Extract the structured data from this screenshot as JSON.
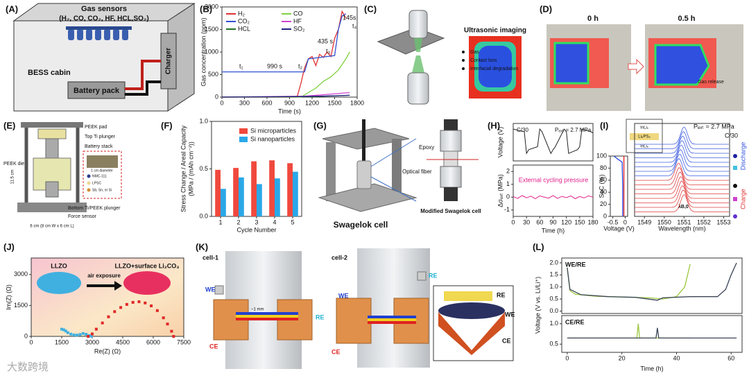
{
  "figure": {
    "A": {
      "label": "(A)",
      "sensors": "Gas sensors",
      "gases": "(H₂, CO, CO₂, HF, HCL,SO₂)",
      "cabin": "BESS cabin",
      "battery": "Battery pack",
      "charger": "Charger"
    },
    "B": {
      "label": "(B)",
      "annotations": [
        "t₁",
        "990 s",
        "t₂",
        "435 s",
        "t₃",
        "145s",
        "t₄"
      ],
      "chart": {
        "type": "line",
        "xlabel": "Time (s)",
        "ylabel": "Gas concentration (ppm)",
        "xlim": [
          0,
          1800
        ],
        "ylim": [
          0,
          2000
        ],
        "xticks": [
          0,
          300,
          600,
          900,
          1200,
          1500,
          1800
        ],
        "yticks": [
          0,
          500,
          1000,
          1500,
          2000
        ],
        "series": [
          {
            "name": "H₂",
            "color": "#e03030",
            "x": [
              0,
              1000,
              1050,
              1100,
              1150,
              1200,
              1250,
              1300,
              1350,
              1400,
              1450,
              1500,
              1550,
              1600,
              1650
            ],
            "values": [
              0,
              0,
              300,
              650,
              850,
              900,
              700,
              950,
              880,
              1000,
              900,
              1300,
              1500,
              1900,
              1750
            ]
          },
          {
            "name": "CO",
            "color": "#7ed040",
            "x": [
              0,
              1050,
              1150,
              1250,
              1350,
              1450,
              1550,
              1650,
              1700
            ],
            "values": [
              0,
              0,
              100,
              200,
              350,
              450,
              600,
              850,
              1000
            ]
          },
          {
            "name": "CO₂",
            "color": "#3050d0",
            "x": [
              0,
              1100,
              1150,
              1500,
              1550,
              1600,
              1650
            ],
            "values": [
              560,
              560,
              850,
              920,
              1500,
              1800,
              1850
            ]
          },
          {
            "name": "HF",
            "color": "#d040d0",
            "x": [
              0,
              1100,
              1400,
              1700
            ],
            "values": [
              0,
              20,
              60,
              100
            ]
          },
          {
            "name": "HCL",
            "color": "#207020",
            "x": [
              0,
              1200,
              1700
            ],
            "values": [
              0,
              10,
              40
            ]
          },
          {
            "name": "SO₂",
            "color": "#202080",
            "x": [
              0,
              1000,
              1500,
              1700
            ],
            "values": [
              0,
              10,
              30,
              40
            ]
          }
        ]
      }
    },
    "C": {
      "label": "(C)",
      "title": "Ultrasonic imaging",
      "items": [
        "Gas",
        "Contact loss",
        "Interfacial degradation"
      ]
    },
    "D": {
      "label": "(D)",
      "times": [
        "0 h",
        "0.5 h"
      ],
      "note": "Gas release"
    },
    "E": {
      "label": "(E)",
      "parts": [
        "PEEK pad",
        "Top Ti plunger",
        "Battery stack",
        "PEEK die",
        "Bottom Ti/PEEK plunger",
        "Force sensor"
      ],
      "legend": [
        "NMC-111",
        "LPSC",
        "Sb, Sn, or Si"
      ],
      "diameter": "1 cm diameter",
      "height": "11.5 cm",
      "width": "6 cm (8 cm W x 6 cm L)"
    },
    "F": {
      "label": "(F)",
      "chart": {
        "type": "bar",
        "xlabel": "Cycle Number",
        "ylabel": [
          "Stress Change / Areal Capacity",
          "(MPa / (mAh cm⁻²))"
        ],
        "categories": [
          "1",
          "2",
          "3",
          "4",
          "5"
        ],
        "ylim": [
          0,
          1.0
        ],
        "yticks": [
          {
            "value": 0,
            "label": "0.0"
          },
          0.5,
          {
            "value": 1.0,
            "label": "1.0"
          }
        ],
        "series": [
          {
            "name": "Si microparticles",
            "color": "#f0493e",
            "values": [
              0.49,
              0.51,
              0.58,
              0.59,
              0.56
            ]
          },
          {
            "name": "Si nanoparticles",
            "color": "#2aa8e8",
            "values": [
              0.29,
              0.41,
              0.34,
              0.4,
              0.47
            ]
          }
        ]
      }
    },
    "G": {
      "label": "(G)",
      "epoxy": "Epoxy",
      "fiber": "Optical fiber",
      "cell": "Swagelok cell",
      "modified": "Modified Swagelok cell"
    },
    "H": {
      "label": "(H)",
      "rate": "C/30",
      "pressure": "Pₑₓₜ = 2.7 MPa",
      "note": "External cycling pressure",
      "charts": [
        {
          "type": "line",
          "ylabel": "Voltage (V)",
          "xlim": [
            0,
            180
          ],
          "ylim": [
            0,
            1
          ],
          "series": [
            {
              "color": "#222222",
              "x": [
                0,
                25,
                30,
                35,
                55,
                60,
                65,
                85,
                90,
                95,
                115,
                120,
                125,
                145,
                150,
                155,
                175,
                180
              ],
              "values": [
                0.85,
                0.78,
                0.2,
                0.3,
                0.38,
                0.85,
                0.78,
                0.2,
                0.3,
                0.38,
                0.85,
                0.78,
                0.2,
                0.3,
                0.38,
                0.85,
                0.78,
                0.75
              ]
            }
          ]
        },
        {
          "type": "line",
          "ylabel": "Δσₑₓₜ (MPa)",
          "xlabel": "Time (h)",
          "xlim": [
            0,
            180
          ],
          "ylim": [
            -1.5,
            2.5
          ],
          "xticks": [
            0,
            30,
            60,
            90,
            120,
            150,
            180
          ],
          "yticks": [
            -1,
            0,
            1,
            2
          ],
          "series": [
            {
              "color": "#e0208a",
              "x": [
                0,
                10,
                20,
                30,
                40,
                50,
                60,
                70,
                80,
                90,
                100,
                110,
                120,
                130,
                140,
                150,
                160,
                170,
                180
              ],
              "values": [
                0.05,
                -0.1,
                0.12,
                -0.05,
                0.08,
                -0.12,
                0.1,
                0.0,
                -0.08,
                0.12,
                -0.1,
                0.06,
                -0.04,
                0.1,
                -0.12,
                0.05,
                -0.06,
                0.1,
                0.0
              ]
            }
          ]
        }
      ]
    },
    "I": {
      "label": "(I)",
      "pressure": "Pₑₓₜ = 2.7 MPa",
      "rate": "C/30",
      "discharge": "Discharge",
      "charge": "Charge",
      "lambda": "λB,0",
      "stack": [
        "InLiₓ",
        "Li₆PS₅",
        "InLiₓ"
      ],
      "soc": {
        "type": "line",
        "ylabel": "SoC (%)",
        "xlabel": "Voltage (V)",
        "xlim": [
          -0.6,
          0.1
        ],
        "ylim": [
          0,
          100
        ],
        "xticks": [
          -0.5,
          0
        ],
        "yticks": [
          0,
          20,
          40,
          60,
          80,
          100
        ],
        "series": [
          {
            "color": "#2040e0",
            "x": [
              -0.45,
              -0.3,
              -0.12,
              -0.1,
              -0.1
            ],
            "values": [
              100,
              95,
              90,
              50,
              0
            ]
          },
          {
            "color": "#e02020",
            "x": [
              -0.05,
              -0.05,
              -0.05
            ],
            "values": [
              0,
              50,
              100
            ]
          }
        ]
      },
      "spectra": {
        "type": "waterfall",
        "xlabel": "Wavelength (nm)",
        "xlim": [
          1548.5,
          1553.3
        ],
        "xticks": [
          1549,
          1550,
          1551,
          1552,
          1553
        ],
        "peaks": [
          1551.0,
          1550.97,
          1550.93,
          1550.9,
          1550.86,
          1550.82,
          1550.78,
          1550.74,
          1550.72,
          1550.76,
          1550.8,
          1550.84,
          1550.88,
          1550.92,
          1550.96,
          1551.0
        ]
      }
    },
    "J": {
      "label": "(J)",
      "arrow": "air exposure",
      "chart": {
        "type": "scatter",
        "xlabel": "Re(Z) (Ω)",
        "ylabel": "Im(Z) (Ω)",
        "xlim": [
          0,
          7500
        ],
        "ylim": [
          0,
          3800
        ],
        "xticks": [
          0,
          1500,
          3000,
          4500,
          6000,
          7500
        ],
        "yticks": [
          0,
          1500,
          3000
        ],
        "series": [
          {
            "name": "LLZO",
            "color": "#40b0e0",
            "x": [
              1500,
              1600,
              1700,
              1800,
              1950,
              2100,
              2250,
              2400,
              2550,
              2700,
              2850,
              2950
            ],
            "values": [
              350,
              320,
              260,
              180,
              110,
              70,
              60,
              90,
              140,
              100,
              40,
              10
            ]
          },
          {
            "name": "LLZO+surface Li₂CO₃",
            "color": "#e02828",
            "x": [
              2800,
              3000,
              3200,
              3500,
              3800,
              4100,
              4400,
              4700,
              5000,
              5300,
              5600,
              5900,
              6200,
              6500,
              6700,
              6900,
              7000
            ],
            "values": [
              0,
              120,
              350,
              650,
              950,
              1200,
              1400,
              1550,
              1650,
              1680,
              1620,
              1480,
              1250,
              900,
              600,
              250,
              0
            ]
          }
        ]
      }
    },
    "K": {
      "label": "(K)",
      "cells": [
        "cell-1",
        "cell-2"
      ],
      "cell1": {
        "we": "WE",
        "re": "RE",
        "ce": "CE",
        "gap": "~1 mm"
      },
      "cell2": {
        "we": "WE",
        "re": "RE",
        "ce": "CE",
        "inset": [
          "RE",
          "WE",
          "CE"
        ]
      }
    },
    "L": {
      "label": "(L)",
      "ylabel": "Voltage (V vs. Li/Li⁺)",
      "charts": [
        {
          "type": "line",
          "title": "WE/RE",
          "xlim": [
            -2,
            64
          ],
          "ylim": [
            -0.1,
            2.2
          ],
          "yticks": [
            {
              "value": 0,
              "label": "0.0"
            },
            0.5,
            {
              "value": 1.0,
              "label": "1.0"
            },
            1.5,
            {
              "value": 2.0,
              "label": "2.0"
            }
          ],
          "series": [
            {
              "color": "#9bc83c",
              "x": [
                0,
                1,
                3,
                10,
                20,
                30,
                35,
                40,
                43,
                45
              ],
              "values": [
                1.8,
                0.85,
                0.7,
                0.62,
                0.58,
                0.55,
                0.5,
                0.6,
                1.0,
                1.95
              ]
            },
            {
              "color": "#3a4456",
              "x": [
                0,
                1,
                5,
                15,
                25,
                33,
                35,
                45,
                55,
                58,
                60,
                62
              ],
              "values": [
                1.8,
                0.9,
                0.68,
                0.6,
                0.57,
                0.45,
                0.55,
                0.6,
                0.6,
                0.9,
                1.5,
                2.0
              ]
            }
          ]
        },
        {
          "type": "line",
          "title": "CE/RE",
          "xlabel": "Time (h)",
          "xlim": [
            -2,
            64
          ],
          "ylim": [
            0.3,
            1.2
          ],
          "xticks": [
            0,
            20,
            40,
            60
          ],
          "yticks": [
            0.5,
            {
              "value": 1.0,
              "label": "1.0"
            }
          ],
          "series": [
            {
              "color": "#9bc83c",
              "x": [
                0,
                25.5,
                26,
                26.5,
                45
              ],
              "values": [
                0.65,
                0.65,
                1.0,
                0.65,
                0.65
              ]
            },
            {
              "color": "#3a4456",
              "x": [
                0,
                32.5,
                33,
                33.5,
                62
              ],
              "values": [
                0.65,
                0.65,
                0.9,
                0.65,
                0.65
              ]
            }
          ]
        }
      ]
    },
    "watermark": "大数跨境"
  }
}
